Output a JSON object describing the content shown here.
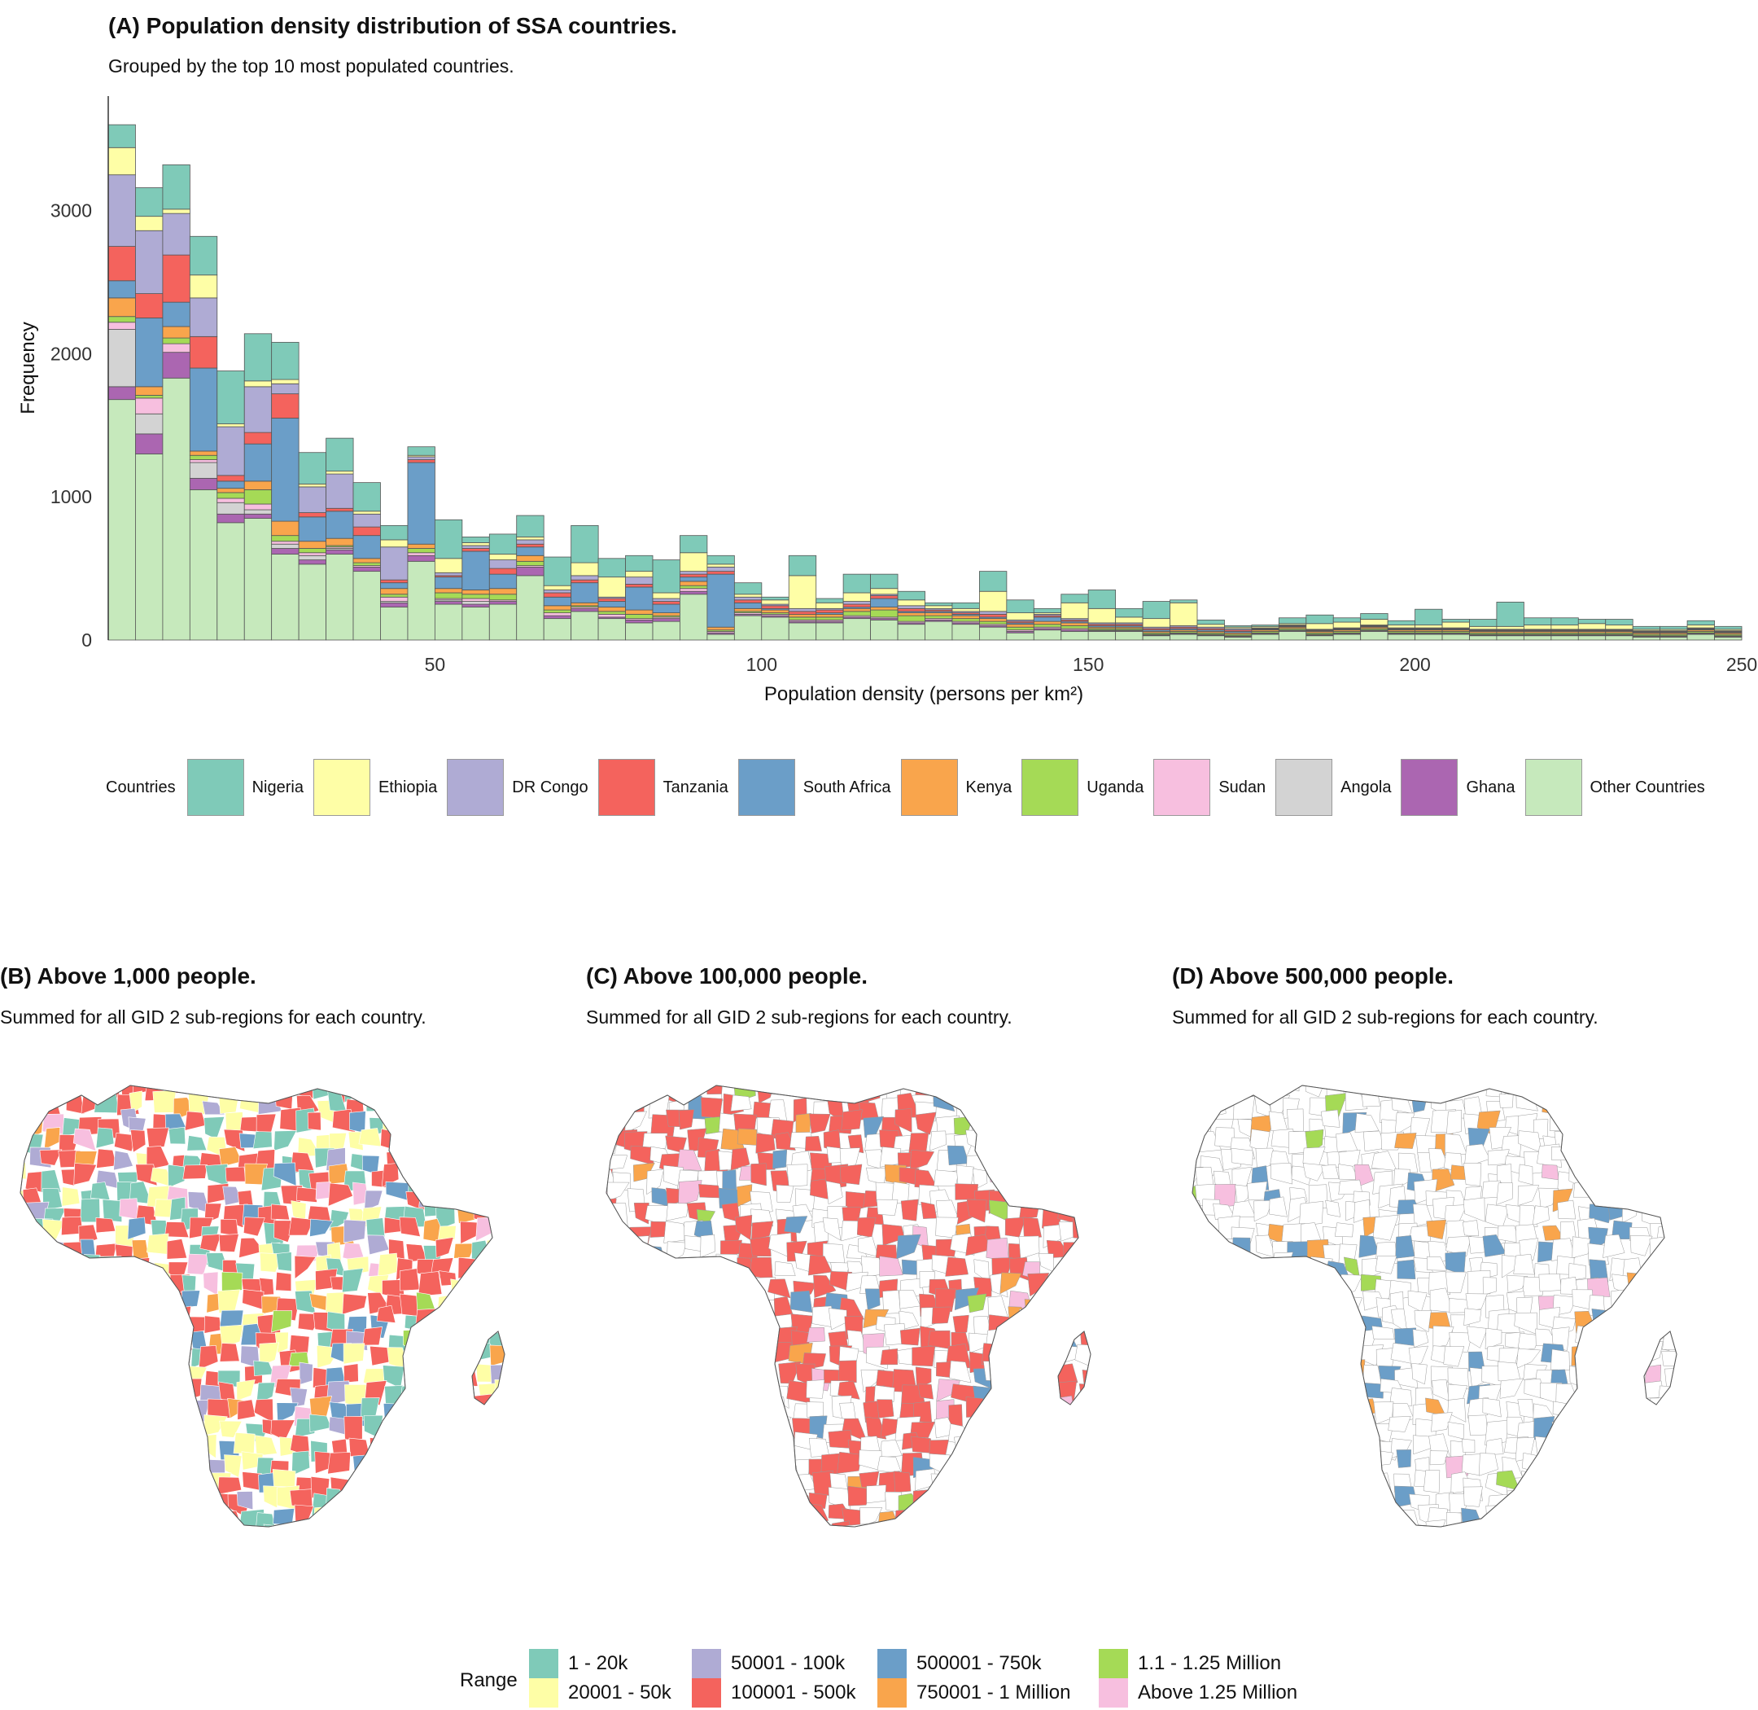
{
  "panel_a": {
    "title": "(A) Population density distribution of SSA countries.",
    "subtitle": "Grouped by the top 10 most populated countries."
  },
  "chart_data": {
    "type": "bar",
    "stacked": true,
    "title": "(A) Population density distribution of SSA countries.",
    "subtitle": "Grouped by the top 10 most populated countries.",
    "xlabel": "Population density (persons per km²)",
    "ylabel": "Frequency",
    "xlim": [
      0,
      250
    ],
    "ylim": [
      0,
      3800
    ],
    "bin_width": 4.17,
    "x_ticks": [
      50,
      100,
      150,
      200,
      250
    ],
    "y_ticks": [
      0,
      1000,
      2000,
      3000
    ],
    "grid": false,
    "legend_title": "Countries",
    "legend_position": "bottom",
    "x": [
      2.08,
      6.25,
      10.42,
      14.58,
      18.75,
      22.92,
      27.08,
      31.25,
      35.42,
      39.58,
      43.75,
      47.92,
      52.08,
      56.25,
      60.42,
      64.58,
      68.75,
      72.92,
      77.08,
      81.25,
      85.42,
      89.58,
      93.75,
      97.92,
      102.08,
      106.25,
      110.42,
      114.58,
      118.75,
      122.92,
      127.08,
      131.25,
      135.42,
      139.58,
      143.75,
      147.92,
      152.08,
      156.25,
      160.42,
      164.58,
      168.75,
      172.92,
      177.08,
      181.25,
      185.42,
      189.58,
      193.75,
      197.92,
      202.08,
      206.25,
      210.42,
      214.58,
      218.75,
      222.92,
      227.08,
      231.25,
      235.42,
      239.58,
      243.75,
      247.92
    ],
    "series": [
      {
        "name": "Other Countries",
        "color": "#c6e9bc",
        "values": [
          1680,
          1300,
          1830,
          1050,
          820,
          850,
          600,
          530,
          600,
          480,
          230,
          550,
          250,
          230,
          250,
          450,
          150,
          200,
          150,
          120,
          130,
          320,
          40,
          170,
          160,
          120,
          120,
          150,
          140,
          110,
          130,
          110,
          90,
          50,
          70,
          60,
          60,
          60,
          30,
          40,
          30,
          20,
          40,
          60,
          30,
          40,
          60,
          40,
          40,
          40,
          30,
          30,
          30,
          30,
          30,
          30,
          20,
          20,
          40,
          20
        ]
      },
      {
        "name": "Ghana",
        "color": "#ab66b1",
        "values": [
          90,
          140,
          180,
          80,
          60,
          30,
          40,
          30,
          30,
          30,
          30,
          40,
          20,
          20,
          20,
          60,
          20,
          20,
          10,
          20,
          20,
          20,
          10,
          10,
          10,
          10,
          10,
          10,
          10,
          10,
          10,
          10,
          10,
          10,
          10,
          10,
          5,
          5,
          5,
          5,
          5,
          5,
          5,
          5,
          5,
          5,
          5,
          5,
          5,
          5,
          5,
          5,
          5,
          5,
          5,
          5,
          5,
          5,
          5,
          5
        ]
      },
      {
        "name": "Angola",
        "color": "#d3d3d3",
        "values": [
          400,
          140,
          0,
          110,
          80,
          30,
          30,
          30,
          10,
          0,
          10,
          0,
          10,
          20,
          0,
          0,
          0,
          0,
          0,
          0,
          0,
          0,
          0,
          0,
          0,
          0,
          0,
          0,
          0,
          0,
          0,
          0,
          0,
          0,
          0,
          0,
          0,
          0,
          0,
          0,
          0,
          0,
          0,
          0,
          0,
          0,
          0,
          0,
          0,
          0,
          0,
          0,
          0,
          0,
          0,
          0,
          0,
          0,
          0,
          0
        ]
      },
      {
        "name": "Sudan",
        "color": "#f7bfdf",
        "values": [
          50,
          110,
          60,
          20,
          30,
          40,
          20,
          20,
          10,
          10,
          30,
          20,
          10,
          20,
          10,
          10,
          20,
          10,
          20,
          10,
          10,
          20,
          10,
          10,
          10,
          10,
          10,
          10,
          10,
          10,
          10,
          10,
          10,
          10,
          10,
          10,
          5,
          5,
          5,
          5,
          5,
          5,
          5,
          5,
          5,
          5,
          5,
          5,
          5,
          5,
          5,
          5,
          5,
          5,
          5,
          5,
          5,
          5,
          5,
          5
        ]
      },
      {
        "name": "Uganda",
        "color": "#a5da56",
        "values": [
          40,
          20,
          40,
          30,
          40,
          100,
          40,
          30,
          10,
          20,
          20,
          30,
          40,
          30,
          40,
          30,
          20,
          10,
          20,
          30,
          10,
          20,
          10,
          10,
          10,
          20,
          20,
          30,
          50,
          40,
          20,
          20,
          20,
          20,
          20,
          20,
          10,
          10,
          10,
          10,
          10,
          10,
          10,
          10,
          10,
          10,
          10,
          10,
          10,
          10,
          10,
          10,
          10,
          10,
          10,
          10,
          10,
          10,
          10,
          10
        ]
      },
      {
        "name": "Kenya",
        "color": "#f9a54c",
        "values": [
          130,
          60,
          80,
          30,
          30,
          60,
          100,
          50,
          50,
          30,
          40,
          30,
          30,
          30,
          40,
          40,
          30,
          20,
          30,
          30,
          20,
          30,
          20,
          20,
          20,
          20,
          20,
          20,
          20,
          20,
          20,
          20,
          20,
          20,
          20,
          20,
          10,
          10,
          10,
          10,
          10,
          10,
          10,
          10,
          10,
          10,
          10,
          10,
          10,
          10,
          10,
          10,
          10,
          10,
          10,
          10,
          10,
          10,
          10,
          10
        ]
      },
      {
        "name": "South Africa",
        "color": "#6b9ec8",
        "values": [
          120,
          480,
          170,
          580,
          50,
          260,
          720,
          170,
          190,
          160,
          40,
          570,
          80,
          270,
          100,
          60,
          60,
          140,
          40,
          160,
          60,
          30,
          370,
          40,
          10,
          0,
          10,
          10,
          60,
          10,
          10,
          10,
          10,
          10,
          30,
          10,
          10,
          10,
          10,
          10,
          10,
          10,
          5,
          5,
          5,
          5,
          5,
          5,
          5,
          5,
          5,
          5,
          5,
          5,
          5,
          5,
          5,
          5,
          5,
          5
        ]
      },
      {
        "name": "Tanzania",
        "color": "#f4635d",
        "values": [
          240,
          170,
          330,
          220,
          40,
          80,
          170,
          30,
          20,
          60,
          20,
          20,
          10,
          20,
          40,
          20,
          30,
          20,
          20,
          20,
          20,
          20,
          20,
          20,
          20,
          20,
          20,
          20,
          20,
          20,
          10,
          10,
          20,
          10,
          10,
          10,
          10,
          10,
          10,
          10,
          10,
          10,
          5,
          5,
          5,
          5,
          5,
          5,
          5,
          5,
          5,
          5,
          5,
          5,
          5,
          5,
          5,
          5,
          5,
          5
        ]
      },
      {
        "name": "DR Congo",
        "color": "#afabd4",
        "values": [
          500,
          440,
          290,
          270,
          340,
          320,
          70,
          180,
          240,
          90,
          230,
          20,
          20,
          20,
          60,
          30,
          20,
          30,
          10,
          50,
          20,
          20,
          30,
          20,
          10,
          20,
          10,
          20,
          10,
          20,
          10,
          10,
          20,
          10,
          10,
          10,
          10,
          10,
          10,
          10,
          10,
          10,
          5,
          5,
          5,
          5,
          5,
          5,
          5,
          5,
          5,
          5,
          5,
          5,
          5,
          5,
          5,
          5,
          5,
          5
        ]
      },
      {
        "name": "Ethiopia",
        "color": "#fefea6",
        "values": [
          190,
          100,
          30,
          160,
          20,
          40,
          30,
          20,
          20,
          20,
          50,
          10,
          100,
          20,
          40,
          20,
          30,
          90,
          140,
          40,
          40,
          130,
          20,
          20,
          30,
          230,
          40,
          60,
          40,
          40,
          20,
          20,
          140,
          50,
          10,
          110,
          100,
          40,
          60,
          160,
          20,
          10,
          10,
          10,
          40,
          40,
          40,
          20,
          20,
          40,
          20,
          20,
          30,
          30,
          40,
          30,
          10,
          10,
          20,
          10
        ]
      },
      {
        "name": "Nigeria",
        "color": "#7fcab8",
        "values": [
          160,
          200,
          310,
          270,
          370,
          330,
          260,
          220,
          230,
          200,
          100,
          60,
          270,
          40,
          140,
          150,
          200,
          260,
          130,
          110,
          230,
          120,
          60,
          80,
          20,
          140,
          30,
          130,
          100,
          60,
          20,
          40,
          140,
          90,
          30,
          60,
          130,
          60,
          120,
          20,
          30,
          10,
          10,
          40,
          60,
          30,
          40,
          30,
          110,
          20,
          50,
          170,
          50,
          50,
          30,
          40,
          20,
          20,
          30,
          20
        ]
      }
    ]
  },
  "legend_labels": {
    "title": "Countries",
    "items": [
      "Nigeria",
      "Ethiopia",
      "DR Congo",
      "Tanzania",
      "South Africa",
      "Kenya",
      "Uganda",
      "Sudan",
      "Angola",
      "Ghana",
      "Other Countries"
    ]
  },
  "country_colors": {
    "Nigeria": "#7fcab8",
    "Ethiopia": "#fefea6",
    "DR Congo": "#afabd4",
    "Tanzania": "#f4635d",
    "South Africa": "#6b9ec8",
    "Kenya": "#f9a54c",
    "Uganda": "#a5da56",
    "Sudan": "#f7bfdf",
    "Angola": "#d3d3d3",
    "Ghana": "#ab66b1",
    "Other Countries": "#c6e9bc"
  },
  "maps": [
    {
      "id": "b",
      "title": "(B) Above 1,000 people.",
      "subtitle": "Summed for all GID 2 sub-regions for each country.",
      "threshold": 1000
    },
    {
      "id": "c",
      "title": "(C) Above 100,000 people.",
      "subtitle": "Summed for all GID 2 sub-regions for each country.",
      "threshold": 100000
    },
    {
      "id": "d",
      "title": "(D) Above 500,000 people.",
      "subtitle": "Summed for all GID 2 sub-regions for each country.",
      "threshold": 500000
    }
  ],
  "range_legend": {
    "title": "Range",
    "items": [
      {
        "label": "1 - 20k",
        "color": "#7fcab8"
      },
      {
        "label": "20001 - 50k",
        "color": "#fefea6"
      },
      {
        "label": "50001 - 100k",
        "color": "#afabd4"
      },
      {
        "label": "100001 - 500k",
        "color": "#f4635d"
      },
      {
        "label": "500001 - 750k",
        "color": "#6b9ec8"
      },
      {
        "label": "750001 - 1 Million",
        "color": "#f9a54c"
      },
      {
        "label": "1.1 - 1.25 Million",
        "color": "#a5da56"
      },
      {
        "label": "Above 1.25 Million",
        "color": "#f7bfdf"
      }
    ]
  }
}
